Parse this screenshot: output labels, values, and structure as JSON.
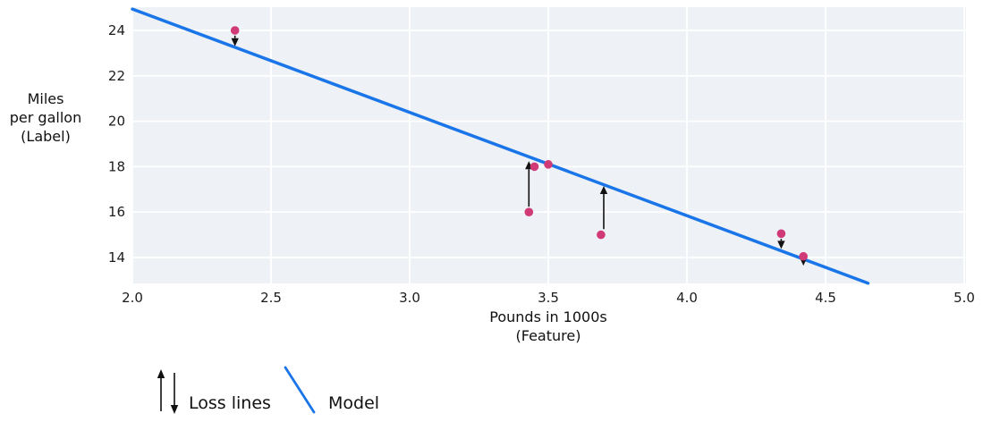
{
  "chart_data": {
    "type": "scatter",
    "title": "",
    "xlabel_lines": [
      "Pounds in 1000s",
      "(Feature)"
    ],
    "ylabel_lines": [
      "Miles",
      "per gallon",
      "(Label)"
    ],
    "x_ticks": [
      "2.0",
      "2.5",
      "3.0",
      "3.5",
      "4.0",
      "4.5",
      "5.0"
    ],
    "y_ticks": [
      "14",
      "16",
      "18",
      "20",
      "22",
      "24"
    ],
    "xlim": [
      2.0,
      5.0
    ],
    "ylim": [
      12.9,
      25.0
    ],
    "grid": true,
    "points": [
      {
        "x": 2.37,
        "y": 24.0
      },
      {
        "x": 3.43,
        "y": 16.0
      },
      {
        "x": 3.45,
        "y": 18.0
      },
      {
        "x": 3.5,
        "y": 18.1
      },
      {
        "x": 3.69,
        "y": 15.0
      },
      {
        "x": 4.34,
        "y": 15.05
      },
      {
        "x": 4.42,
        "y": 14.05
      }
    ],
    "model_line": {
      "slope": -4.55,
      "intercept": 34.04,
      "x_start": 2.0,
      "x_end": 4.653
    },
    "loss_arrows": [
      {
        "x": 2.37,
        "y_from": 23.77,
        "y_to": 23.3,
        "direction": "down"
      },
      {
        "x": 3.43,
        "y_from": 16.24,
        "y_to": 18.24,
        "direction": "up"
      },
      {
        "x": 3.7,
        "y_from": 15.25,
        "y_to": 17.15,
        "direction": "up"
      },
      {
        "x": 4.34,
        "y_from": 14.82,
        "y_to": 14.38,
        "direction": "down"
      },
      {
        "x": 4.42,
        "y_from": 13.9,
        "y_to": 13.64,
        "direction": "down"
      }
    ],
    "legend": [
      {
        "symbol": "arrows",
        "label": "Loss lines"
      },
      {
        "symbol": "line",
        "label": "Model"
      }
    ]
  },
  "colors": {
    "point": "#d03b77",
    "model_line": "#1a76e8",
    "arrow": "#111111",
    "plot_background": "#eef1f6",
    "gridline": "#ffffff",
    "tick_text": "#1c1c1c"
  }
}
